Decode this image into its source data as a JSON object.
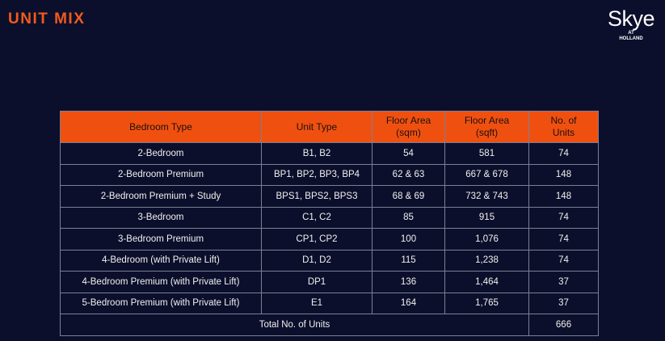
{
  "header": {
    "title": "UNIT MIX",
    "logo": {
      "name": "Skye",
      "line1": "AT",
      "line2": "HOLLAND"
    }
  },
  "table": {
    "columns": [
      "Bedroom Type",
      "Unit Type",
      "Floor Area\n(sqm)",
      "Floor Area\n(sqft)",
      "No. of\nUnits"
    ],
    "rows": [
      [
        "2-Bedroom",
        "B1, B2",
        "54",
        "581",
        "74"
      ],
      [
        "2-Bedroom Premium",
        "BP1, BP2, BP3, BP4",
        "62 & 63",
        "667 & 678",
        "148"
      ],
      [
        "2-Bedroom Premium + Study",
        "BPS1, BPS2, BPS3",
        "68 & 69",
        "732 & 743",
        "148"
      ],
      [
        "3-Bedroom",
        "C1, C2",
        "85",
        "915",
        "74"
      ],
      [
        "3-Bedroom Premium",
        "CP1, CP2",
        "100",
        "1,076",
        "74"
      ],
      [
        "4-Bedroom (with Private Lift)",
        "D1, D2",
        "115",
        "1,238",
        "74"
      ],
      [
        "4-Bedroom Premium (with Private Lift)",
        "DP1",
        "136",
        "1,464",
        "37"
      ],
      [
        "5-Bedroom Premium (with Private Lift)",
        "E1",
        "164",
        "1,765",
        "37"
      ]
    ],
    "total": {
      "label": "Total No. of Units",
      "value": "666"
    }
  }
}
